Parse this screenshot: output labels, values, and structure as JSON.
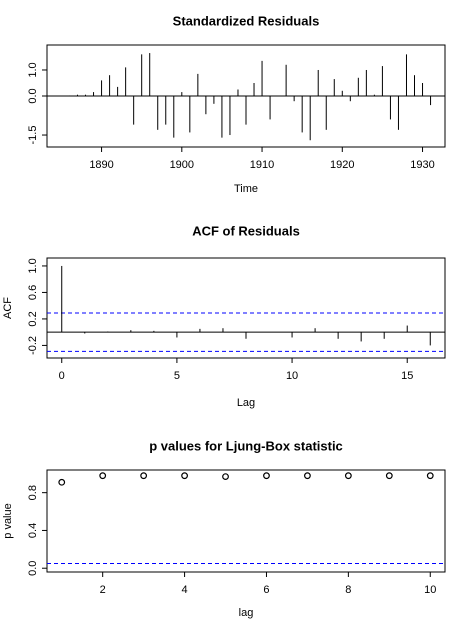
{
  "chart_data": [
    {
      "type": "bar",
      "title": "Standardized Residuals",
      "x_label": "Time",
      "color": "#000000",
      "x": [
        1886,
        1887,
        1888,
        1889,
        1890,
        1891,
        1892,
        1893,
        1894,
        1895,
        1896,
        1897,
        1898,
        1899,
        1900,
        1901,
        1902,
        1903,
        1904,
        1905,
        1906,
        1907,
        1908,
        1909,
        1910,
        1911,
        1912,
        1913,
        1914,
        1915,
        1916,
        1917,
        1918,
        1919,
        1920,
        1921,
        1922,
        1923,
        1924,
        1925,
        1926,
        1927,
        1928,
        1929,
        1930,
        1931
      ],
      "values": [
        0.02,
        0.05,
        0.05,
        0.15,
        0.6,
        0.8,
        0.35,
        1.1,
        -1.1,
        1.6,
        1.65,
        -1.3,
        -1.1,
        -1.6,
        0.15,
        -1.4,
        0.85,
        -0.7,
        -0.3,
        -1.6,
        -1.5,
        0.25,
        -1.1,
        0.5,
        1.35,
        -0.9,
        0.0,
        1.2,
        -0.2,
        -1.4,
        -1.7,
        1.0,
        -1.3,
        0.65,
        0.2,
        -0.2,
        0.7,
        1.0,
        0.05,
        1.15,
        -0.9,
        -1.3,
        1.6,
        0.8,
        0.5,
        -0.35
      ],
      "xlim": [
        1883.2,
        1932.8
      ],
      "xticks": [
        1890,
        1900,
        1910,
        1920,
        1930
      ],
      "ylim": [
        -1.96,
        1.96
      ],
      "yticks": [
        {
          "value": -1.5,
          "label": "-1.5"
        },
        {
          "value": 0,
          "label": "0.0"
        },
        {
          "value": 1,
          "label": "1.0"
        }
      ]
    },
    {
      "type": "bar",
      "title": "ACF of Residuals",
      "x_label": "Lag",
      "y_label": "ACF",
      "color": "#000000",
      "x": [
        0,
        1,
        2,
        3,
        4,
        5,
        6,
        7,
        8,
        9,
        10,
        11,
        12,
        13,
        14,
        15,
        16
      ],
      "values": [
        1,
        -0.02,
        0.01,
        0.03,
        0.02,
        -0.08,
        0.05,
        0.06,
        -0.1,
        0.0,
        -0.08,
        0.06,
        -0.1,
        -0.14,
        -0.1,
        0.1,
        -0.2
      ],
      "reference_lines": [
        0.29,
        -0.29
      ],
      "reference_color": "#0000ff",
      "xlim": [
        -0.64,
        16.64
      ],
      "xticks": [
        0,
        5,
        10,
        15
      ],
      "ylim": [
        -0.39,
        1.12
      ],
      "yticks": [
        -0.2,
        0.2,
        0.6,
        {
          "value": 1,
          "label": "1.0"
        }
      ]
    },
    {
      "type": "scatter",
      "title": "p values for Ljung-Box statistic",
      "x_label": "lag",
      "y_label": "p value",
      "color": "#000000",
      "x": [
        1,
        2,
        3,
        4,
        5,
        6,
        7,
        8,
        9,
        10
      ],
      "values": [
        0.91,
        0.98,
        0.98,
        0.98,
        0.97,
        0.98,
        0.98,
        0.98,
        0.98,
        0.98
      ],
      "reference_lines": [
        0.05
      ],
      "reference_color": "#0000ff",
      "xlim": [
        0.64,
        10.36
      ],
      "xticks": [
        2,
        4,
        6,
        8,
        10
      ],
      "ylim": [
        -0.04,
        1.04
      ],
      "yticks": [
        {
          "value": 0,
          "label": "0.0"
        },
        0.4,
        0.8
      ]
    }
  ]
}
